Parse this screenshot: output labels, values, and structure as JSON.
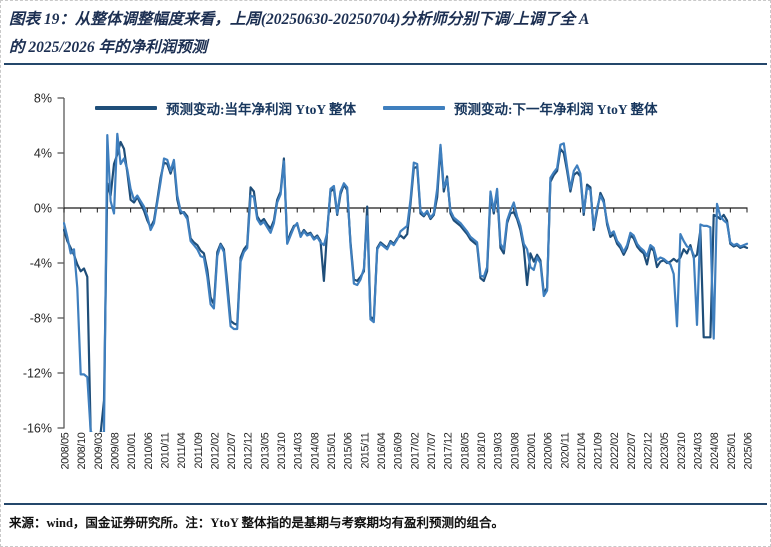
{
  "title": {
    "line1": "图表 19：从整体调整幅度来看，上周(20250630-20250704)分析师分别下调/上调了全 A",
    "line2": "的 2025/2026 年的净利润预测"
  },
  "legend": {
    "items": [
      {
        "label": "预测变动:当年净利润 YtoY 整体"
      },
      {
        "label": "预测变动:下一年净利润 YtoY 整体"
      }
    ]
  },
  "footer": {
    "source_note": "来源：wind，国金证券研究所。注：YtoY 整体指的是基期与考察期均有盈利预测的组合。"
  },
  "colors": {
    "accent_navy": "#1F4E79",
    "series_current_year": "#1F4E79",
    "series_next_year": "#3F7FBE",
    "axis": "#595959",
    "tick_text": "#262626"
  },
  "chart_data": {
    "type": "line",
    "title": "上周分析师对全A 2025/2026年净利润预测的整体调整幅度",
    "x_start": "2008/05",
    "x_end": "2025/06",
    "x_frequency": "monthly",
    "x_tick_labels": [
      "2008/05",
      "2008/10",
      "2009/03",
      "2009/08",
      "2010/01",
      "2010/06",
      "2010/11",
      "2011/04",
      "2011/09",
      "2012/02",
      "2012/07",
      "2012/12",
      "2013/05",
      "2013/10",
      "2014/03",
      "2014/08",
      "2015/01",
      "2015/06",
      "2015/11",
      "2016/04",
      "2016/09",
      "2017/02",
      "2017/07",
      "2017/12",
      "2018/05",
      "2018/10",
      "2019/03",
      "2019/08",
      "2020/01",
      "2020/06",
      "2020/11",
      "2021/04",
      "2021/09",
      "2022/02",
      "2022/07",
      "2022/12",
      "2023/05",
      "2023/10",
      "2024/03",
      "2024/08",
      "2025/01",
      "2025/06"
    ],
    "x_tick_step_months": 5,
    "y_tick_labels": [
      "8%",
      "4%",
      "0%",
      "-4%",
      "-8%",
      "-12%",
      "-16%"
    ],
    "y_ticks": [
      8,
      4,
      0,
      -4,
      -8,
      -12,
      -16
    ],
    "ylim": [
      -16,
      8
    ],
    "unit": "%",
    "grid": false,
    "legend_position": "top",
    "series": [
      {
        "name": "预测变动:当年净利润 YtoY 整体",
        "color": "#1F4E79",
        "values": [
          -1.6,
          -2.4,
          -2.9,
          -3.4,
          -4.1,
          -4.6,
          -4.4,
          -5.0,
          -16.4,
          -16.4,
          -16.4,
          -16.4,
          -14.0,
          1.8,
          0.9,
          3.2,
          3.9,
          4.8,
          4.3,
          2.6,
          0.6,
          0.4,
          0.8,
          0.3,
          -0.2,
          -0.9,
          -1.4,
          -0.9,
          0.6,
          2.2,
          3.3,
          3.2,
          2.5,
          3.3,
          0.6,
          -0.4,
          -0.3,
          -0.6,
          -2.2,
          -2.5,
          -2.7,
          -3.1,
          -3.3,
          -4.5,
          -6.5,
          -7.0,
          -3.2,
          -2.6,
          -3.0,
          -5.5,
          -8.2,
          -8.4,
          -8.5,
          -3.6,
          -3.0,
          -2.7,
          1.5,
          1.2,
          -0.6,
          -1.0,
          -0.8,
          -1.2,
          -1.5,
          -0.9,
          0.6,
          1.2,
          3.6,
          -2.5,
          -1.8,
          -1.3,
          -1.2,
          -2.0,
          -1.6,
          -1.9,
          -1.8,
          -2.2,
          -2.0,
          -2.4,
          -5.3,
          -1.6,
          1.2,
          1.4,
          -0.5,
          1.0,
          1.7,
          1.3,
          -2.5,
          -5.2,
          -5.3,
          -5.0,
          -4.6,
          0.1,
          -7.9,
          -8.1,
          -2.9,
          -2.5,
          -2.7,
          -2.9,
          -2.4,
          -2.6,
          -2.2,
          -2.0,
          -2.2,
          -1.9,
          0.3,
          2.9,
          3.0,
          -0.4,
          -0.6,
          -0.3,
          -0.8,
          -0.5,
          0.8,
          4.4,
          1.2,
          2.3,
          -0.4,
          -0.9,
          -1.1,
          -1.3,
          -1.6,
          -1.9,
          -2.3,
          -2.5,
          -2.7,
          -5.1,
          -5.3,
          -4.6,
          0.9,
          -0.4,
          1.2,
          -2.9,
          -3.3,
          -1.1,
          -0.4,
          -0.3,
          -0.8,
          -1.6,
          -2.9,
          -5.6,
          -3.3,
          -3.9,
          -3.4,
          -3.8,
          -6.2,
          -5.8,
          1.9,
          2.4,
          2.7,
          4.3,
          4.0,
          2.7,
          1.2,
          2.4,
          2.6,
          2.3,
          -0.5,
          1.7,
          1.5,
          -1.6,
          -0.2,
          1.1,
          0.6,
          -1.2,
          -2.1,
          -1.9,
          -2.6,
          -2.9,
          -3.4,
          -2.9,
          -2.0,
          -2.2,
          -2.8,
          -3.1,
          -3.3,
          -4.1,
          -2.9,
          -3.1,
          -4.3,
          -3.9,
          -3.8,
          -4.0,
          -3.9,
          -3.7,
          -3.9,
          -3.6,
          -3.0,
          -3.3,
          -2.7,
          -3.6,
          -3.4,
          -1.6,
          -9.4,
          -9.4,
          -9.4,
          -0.5,
          -0.6,
          -0.8,
          -0.5,
          -0.9,
          -2.6,
          -2.8,
          -2.7,
          -2.9,
          -2.8,
          -2.9
        ]
      },
      {
        "name": "预测变动:下一年净利润 YtoY 整体",
        "color": "#3F7FBE",
        "values": [
          -1.1,
          -2.1,
          -3.3,
          -3.0,
          -5.8,
          -12.1,
          -12.1,
          -12.3,
          -16.3,
          -16.4,
          -16.4,
          -16.4,
          -16.3,
          5.3,
          0.5,
          -0.4,
          5.4,
          3.2,
          3.6,
          2.8,
          1.4,
          0.6,
          0.9,
          0.5,
          0.1,
          -0.6,
          -1.6,
          -1.1,
          0.4,
          1.9,
          3.6,
          3.5,
          2.7,
          3.5,
          0.9,
          -0.2,
          -0.4,
          -0.8,
          -2.4,
          -2.7,
          -3.0,
          -3.5,
          -3.6,
          -5.0,
          -7.0,
          -7.3,
          -3.5,
          -2.7,
          -3.2,
          -6.0,
          -8.6,
          -8.8,
          -8.8,
          -3.9,
          -3.2,
          -2.9,
          0.9,
          0.8,
          -0.8,
          -1.2,
          -1.0,
          -1.4,
          -1.8,
          -1.1,
          0.4,
          1.0,
          3.4,
          -2.6,
          -2.0,
          -1.4,
          -1.1,
          -2.1,
          -1.7,
          -2.0,
          -1.9,
          -2.3,
          -2.1,
          -2.5,
          -2.7,
          -1.8,
          1.4,
          1.6,
          -0.4,
          1.2,
          1.8,
          1.5,
          -2.7,
          -5.5,
          -5.6,
          -5.2,
          -4.4,
          -0.6,
          -8.1,
          -8.3,
          -3.0,
          -2.6,
          -2.8,
          -3.0,
          -2.5,
          -2.7,
          -2.3,
          -1.7,
          -1.5,
          -1.3,
          0.6,
          3.3,
          3.2,
          -0.2,
          -0.5,
          -0.2,
          -0.7,
          -0.4,
          1.4,
          4.6,
          1.5,
          2.1,
          -0.2,
          -0.7,
          -0.9,
          -1.1,
          -1.4,
          -1.7,
          -2.1,
          -2.3,
          -2.5,
          -4.9,
          -5.0,
          -4.3,
          1.2,
          -0.2,
          1.4,
          -2.6,
          -3.0,
          -0.9,
          -0.2,
          0.4,
          -0.6,
          -1.3,
          -2.6,
          -3.0,
          -4.3,
          -4.5,
          -3.6,
          -4.0,
          -6.4,
          -6.0,
          2.2,
          2.6,
          2.9,
          4.6,
          4.7,
          3.0,
          1.4,
          2.7,
          3.1,
          2.5,
          -0.3,
          1.5,
          1.3,
          -1.4,
          0.0,
          0.9,
          0.4,
          -1.0,
          -1.9,
          -1.7,
          -2.4,
          -2.7,
          -3.2,
          -2.7,
          -1.8,
          -2.0,
          -2.6,
          -2.9,
          -3.1,
          -3.5,
          -2.7,
          -2.9,
          -3.8,
          -3.6,
          -3.7,
          -3.9,
          -4.1,
          -4.8,
          -8.6,
          -1.9,
          -2.4,
          -2.8,
          -2.9,
          -3.4,
          -8.5,
          -1.2,
          -1.3,
          -1.3,
          -1.4,
          -9.5,
          0.3,
          -0.6,
          -0.9,
          -1.1,
          -2.5,
          -2.7,
          -2.6,
          -2.8,
          -2.7,
          -2.6
        ]
      }
    ]
  }
}
